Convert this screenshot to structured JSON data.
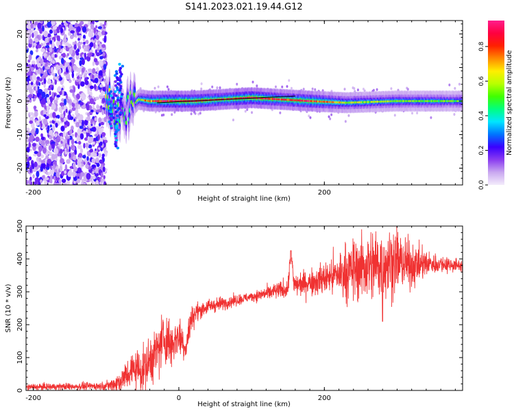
{
  "figure": {
    "title": "S141.2023.021.19.44.G12"
  },
  "chart_data": [
    {
      "type": "heatmap",
      "title": "",
      "xlabel": "Height of straight line (km)",
      "ylabel": "Frequency (Hz)",
      "xlim": [
        -210,
        390
      ],
      "ylim": [
        -25,
        24
      ],
      "xticks": [
        -200,
        0,
        200
      ],
      "yticks": [
        -20,
        -10,
        0,
        10,
        20
      ],
      "grid": false,
      "colorbar": {
        "label": "Normalized spectral amplitude",
        "range": [
          0,
          0.95
        ],
        "ticks": [
          0.0,
          0.2,
          0.4,
          0.6,
          0.8
        ],
        "tick_labels": [
          "0.0",
          "0.2",
          "0.4",
          "0.6",
          "0.8"
        ],
        "colors": [
          "#f4ecfb",
          "#c9a8f0",
          "#8a3cf0",
          "#3a00ff",
          "#0074ff",
          "#00e6ff",
          "#00ff80",
          "#40ff00",
          "#b8ff00",
          "#ffee00",
          "#ff8a00",
          "#ff2000",
          "#ff0040",
          "#ff1e8c"
        ]
      },
      "ridge": [
        {
          "x": -100,
          "y": 1.5,
          "v": 0.6
        },
        {
          "x": -92,
          "y": -1,
          "v": 0.55
        },
        {
          "x": -85,
          "y": -6,
          "v": 0.5
        },
        {
          "x": -80,
          "y": -3,
          "v": 0.45
        },
        {
          "x": -70,
          "y": -3,
          "v": 0.45
        },
        {
          "x": -55,
          "y": 0.5,
          "v": 0.6
        },
        {
          "x": -40,
          "y": 0,
          "v": 0.75
        },
        {
          "x": -20,
          "y": 0,
          "v": 0.85
        },
        {
          "x": 20,
          "y": 0,
          "v": 0.9
        },
        {
          "x": 60,
          "y": 0.5,
          "v": 0.8
        },
        {
          "x": 100,
          "y": 1,
          "v": 0.9
        },
        {
          "x": 140,
          "y": 0.5,
          "v": 0.8
        },
        {
          "x": 180,
          "y": 0,
          "v": 0.85
        },
        {
          "x": 230,
          "y": -0.5,
          "v": 0.6
        },
        {
          "x": 300,
          "y": 0,
          "v": 0.55
        },
        {
          "x": 388,
          "y": 0,
          "v": 0.5
        }
      ],
      "reference_line": {
        "x": [
          -30,
          160
        ],
        "y": [
          -0.5,
          1.5
        ]
      }
    },
    {
      "type": "line",
      "title": "",
      "xlabel": "Height of straight line (km)",
      "ylabel": "SNR (10 * v/v)",
      "xlim": [
        -210,
        390
      ],
      "ylim": [
        0,
        500
      ],
      "xticks": [
        -200,
        0,
        200
      ],
      "yticks": [
        0,
        100,
        200,
        300,
        400,
        500
      ],
      "grid": false,
      "color": "#f03232",
      "series": [
        {
          "x": [
            -210,
            -150,
            -100,
            -90,
            -80,
            -70,
            -60,
            -50,
            -40,
            -30,
            -20,
            -10,
            0,
            10,
            15,
            20,
            30,
            40,
            60,
            80,
            100,
            120,
            140,
            150,
            154,
            158,
            170,
            200,
            230,
            260,
            280,
            300,
            320,
            340,
            360,
            390
          ],
          "y": [
            10,
            12,
            14,
            18,
            30,
            50,
            70,
            60,
            90,
            120,
            160,
            140,
            170,
            130,
            200,
            230,
            245,
            255,
            265,
            275,
            285,
            295,
            305,
            310,
            425,
            320,
            325,
            340,
            360,
            380,
            385,
            395,
            380,
            385,
            385,
            380
          ]
        }
      ],
      "noise_amplitude": {
        "x": [
          -210,
          -100,
          -60,
          -20,
          10,
          30,
          100,
          150,
          200,
          230,
          260,
          290,
          320,
          350,
          390
        ],
        "y": [
          8,
          10,
          50,
          70,
          40,
          20,
          12,
          25,
          40,
          70,
          90,
          90,
          55,
          25,
          15
        ]
      }
    }
  ]
}
